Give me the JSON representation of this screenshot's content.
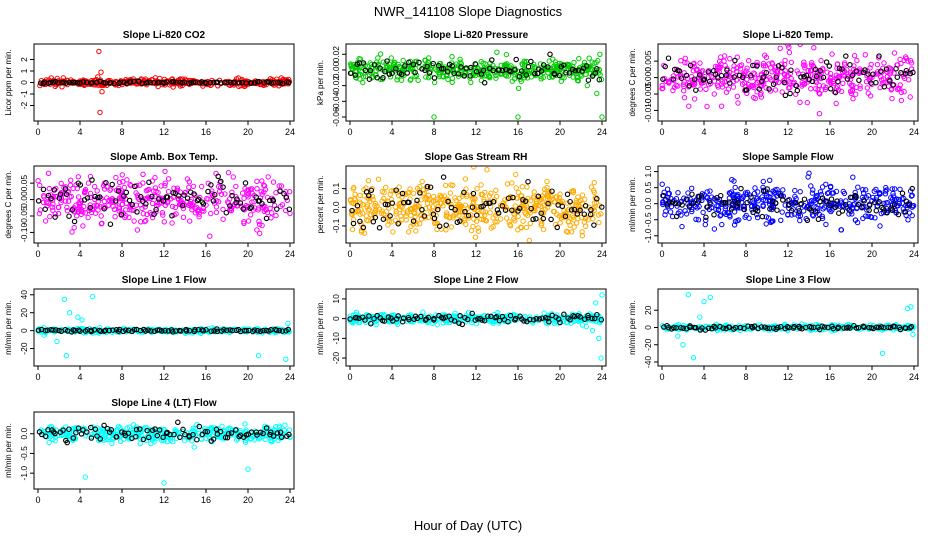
{
  "figure": {
    "title": "NWR_141108  Slope Diagnostics",
    "xlabel": "Hour of Day (UTC)"
  },
  "chart_data": [
    {
      "type": "scatter",
      "title": "Slope Li-820 CO2",
      "ylabel": "Licor ppm per min.",
      "xlim": [
        0,
        24
      ],
      "ylim": [
        -3,
        3
      ],
      "xticks": [
        0,
        4,
        8,
        12,
        16,
        20,
        24
      ],
      "yticks": [
        -2,
        -1,
        0,
        1,
        2
      ],
      "color": "#ff0000",
      "grid": false,
      "noise": {
        "sd": 0.15,
        "n": 360
      },
      "outliers": [
        [
          5.8,
          2.7
        ],
        [
          5.9,
          -2.6
        ],
        [
          6.0,
          0.9
        ],
        [
          6.1,
          -0.8
        ],
        [
          5.7,
          0.5
        ]
      ],
      "black_points": {
        "sd": 0.05,
        "n": 90
      }
    },
    {
      "type": "scatter",
      "title": "Slope Li-820 Pressure",
      "ylabel": "kPa per min.",
      "xlim": [
        0,
        24
      ],
      "ylim": [
        -0.06,
        0.028
      ],
      "xticks": [
        0,
        4,
        8,
        12,
        16,
        20,
        24
      ],
      "yticks": [
        -0.06,
        -0.04,
        -0.02,
        0.0,
        0.02
      ],
      "ytick_labels": [
        "-0.06",
        "-0.04",
        "-0.02",
        "0.00",
        "0.02"
      ],
      "color": "#00cc00",
      "grid": false,
      "noise": {
        "sd": 0.007,
        "n": 420
      },
      "outliers": [
        [
          8.0,
          -0.06
        ],
        [
          16.0,
          -0.06
        ],
        [
          24.0,
          -0.06
        ],
        [
          22.6,
          -0.02
        ],
        [
          23.5,
          -0.03
        ],
        [
          23.8,
          0.02
        ]
      ],
      "black_points": {
        "sd": 0.006,
        "n": 90
      }
    },
    {
      "type": "scatter",
      "title": "Slope Li-820 Temp.",
      "ylabel": "degrees C per min.",
      "xlim": [
        0,
        24
      ],
      "ylim": [
        -0.012,
        0.009
      ],
      "xticks": [
        0,
        4,
        8,
        12,
        16,
        20,
        24
      ],
      "yticks": [
        -0.01,
        -0.005,
        0.0,
        0.005
      ],
      "ytick_labels": [
        "-0.010",
        "-0.005",
        "0.000",
        "0.005"
      ],
      "color": "#ff00ff",
      "grid": false,
      "noise": {
        "sd": 0.0035,
        "n": 420
      },
      "outliers": [
        [
          15.0,
          -0.011
        ]
      ],
      "black_points": {
        "sd": 0.003,
        "n": 90
      }
    },
    {
      "type": "scatter",
      "title": "Slope Amb. Box Temp.",
      "ylabel": "degrees C per min.",
      "xlim": [
        0,
        24
      ],
      "ylim": [
        -0.12,
        0.09
      ],
      "xticks": [
        0,
        4,
        8,
        12,
        16,
        20,
        24
      ],
      "yticks": [
        -0.1,
        -0.05,
        0.0,
        0.05
      ],
      "ytick_labels": [
        "-0.10",
        "-0.05",
        "0.00",
        "0.05"
      ],
      "color": "#ff00ff",
      "grid": false,
      "noise": {
        "sd": 0.035,
        "n": 400
      },
      "outliers": [
        [
          1.0,
          0.08
        ],
        [
          5.0,
          0.07
        ]
      ],
      "black_points": {
        "sd": 0.03,
        "n": 90
      }
    },
    {
      "type": "scatter",
      "title": "Slope Gas Stream RH",
      "ylabel": "percent per min.",
      "xlim": [
        0,
        24
      ],
      "ylim": [
        -0.17,
        0.2
      ],
      "xticks": [
        0,
        4,
        8,
        12,
        16,
        20,
        24
      ],
      "yticks": [
        -0.1,
        0.0,
        0.1
      ],
      "ytick_labels": [
        "-0.1",
        "0.0",
        "0.1"
      ],
      "color": "#ffaa00",
      "grid": false,
      "noise": {
        "sd": 0.07,
        "n": 480
      },
      "outliers": [],
      "black_points": {
        "sd": 0.06,
        "n": 90
      }
    },
    {
      "type": "scatter",
      "title": "Slope Sample Flow",
      "ylabel": "ml/min per min.",
      "xlim": [
        0,
        24
      ],
      "ylim": [
        -1.1,
        1.05
      ],
      "xticks": [
        0,
        4,
        8,
        12,
        16,
        20,
        24
      ],
      "yticks": [
        -1.0,
        -0.5,
        0.0,
        0.5,
        1.0
      ],
      "ytick_labels": [
        "-1.0",
        "-0.5",
        "0.0",
        "0.5",
        "1.0"
      ],
      "color": "#0000ff",
      "grid": false,
      "noise": {
        "sd": 0.28,
        "n": 420
      },
      "outliers": [
        [
          14.0,
          0.95
        ]
      ],
      "black_points": {
        "sd": 0.25,
        "n": 90
      }
    },
    {
      "type": "scatter",
      "title": "Slope Line 1 Flow",
      "ylabel": "ml/min per min.",
      "xlim": [
        0,
        24
      ],
      "ylim": [
        -35,
        42
      ],
      "xticks": [
        0,
        4,
        8,
        12,
        16,
        20,
        24
      ],
      "yticks": [
        -20,
        0,
        20,
        40
      ],
      "color": "#00ffff",
      "grid": false,
      "noise": {
        "sd": 1.2,
        "n": 320
      },
      "outliers": [
        [
          2.5,
          35
        ],
        [
          5.2,
          38
        ],
        [
          3.0,
          20
        ],
        [
          3.8,
          15
        ],
        [
          1.8,
          -12
        ],
        [
          2.7,
          -28
        ],
        [
          0.6,
          -5
        ],
        [
          4.2,
          12
        ],
        [
          21.0,
          -28
        ],
        [
          23.6,
          -32
        ],
        [
          23.8,
          8
        ]
      ],
      "black_points": {
        "sd": 0.8,
        "n": 90
      }
    },
    {
      "type": "scatter",
      "title": "Slope Line 2 Flow",
      "ylabel": "ml/min per min.",
      "xlim": [
        0,
        24
      ],
      "ylim": [
        -22,
        13
      ],
      "xticks": [
        0,
        4,
        8,
        12,
        16,
        20,
        24
      ],
      "yticks": [
        -20,
        -10,
        0,
        10
      ],
      "color": "#00ffff",
      "grid": false,
      "noise": {
        "sd": 1.2,
        "n": 360
      },
      "outliers": [
        [
          23.4,
          8
        ],
        [
          23.7,
          -10
        ],
        [
          23.9,
          -20
        ],
        [
          22.5,
          -4
        ],
        [
          23.1,
          -6
        ],
        [
          24.0,
          12
        ]
      ],
      "black_points": {
        "sd": 1.0,
        "n": 90
      }
    },
    {
      "type": "scatter",
      "title": "Slope Line 3 Flow",
      "ylabel": "ml/min per min.",
      "xlim": [
        0,
        24
      ],
      "ylim": [
        -40,
        40
      ],
      "xticks": [
        0,
        4,
        8,
        12,
        16,
        20,
        24
      ],
      "yticks": [
        -40,
        -20,
        0,
        20
      ],
      "color": "#00ffff",
      "grid": false,
      "noise": {
        "sd": 1.5,
        "n": 320
      },
      "outliers": [
        [
          2.5,
          38
        ],
        [
          4.0,
          30
        ],
        [
          4.6,
          35
        ],
        [
          3.0,
          -35
        ],
        [
          2.0,
          -20
        ],
        [
          1.5,
          -10
        ],
        [
          3.6,
          12
        ],
        [
          21.0,
          -30
        ],
        [
          23.4,
          22
        ],
        [
          23.7,
          24
        ],
        [
          23.9,
          -8
        ]
      ],
      "black_points": {
        "sd": 1.0,
        "n": 90
      }
    },
    {
      "type": "scatter",
      "title": "Slope Line 4 (LT) Flow",
      "ylabel": "ml/min per min.",
      "xlim": [
        0,
        24
      ],
      "ylim": [
        -1.3,
        0.45
      ],
      "xticks": [
        0,
        4,
        8,
        12,
        16,
        20,
        24
      ],
      "yticks": [
        -1.0,
        -0.5,
        0.0
      ],
      "ytick_labels": [
        "-1.0",
        "-0.5",
        "0.0"
      ],
      "color": "#00ffff",
      "grid": false,
      "noise": {
        "sd": 0.1,
        "n": 380
      },
      "outliers": [
        [
          4.5,
          -1.1
        ],
        [
          12.0,
          -1.25
        ],
        [
          20.0,
          -0.9
        ]
      ],
      "black_points": {
        "sd": 0.1,
        "n": 90
      }
    }
  ]
}
